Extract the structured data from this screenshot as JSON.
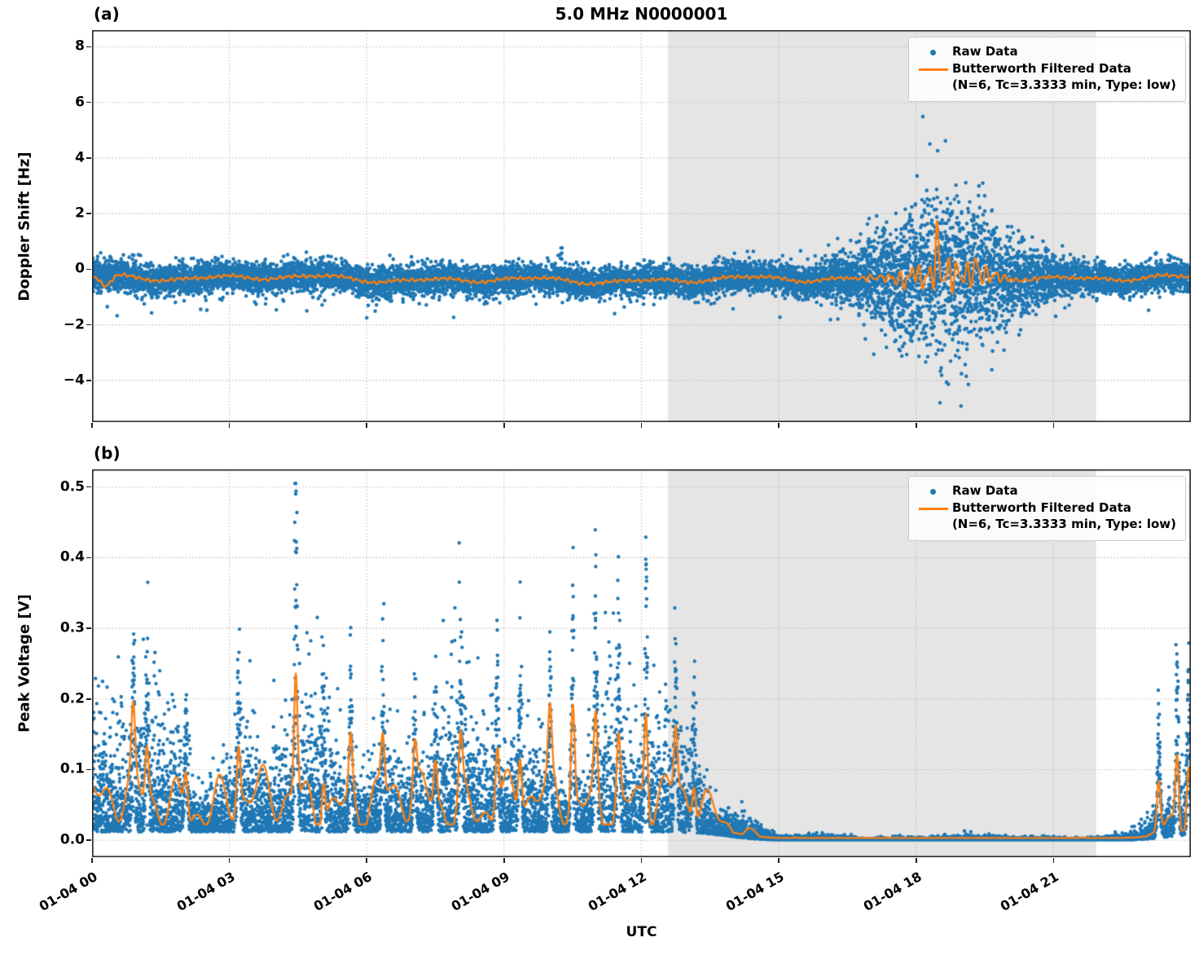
{
  "title": "5.0 MHz N0000001",
  "xlabel": "UTC",
  "colors": {
    "raw": "#1f77b4",
    "filtered": "#ff7f0e",
    "shade": "#e5e5e5",
    "grid": "#b9b9b9",
    "spine": "#1a1a1a",
    "text": "#000000",
    "legend_border": "#cccccc"
  },
  "legend": {
    "raw_label": "Raw Data",
    "filtered_label": "Butterworth Filtered Data",
    "filtered_sublabel": "(N=6, Tc=3.3333 min, Type: low)"
  },
  "x_axis": {
    "range_hours": [
      0,
      24
    ],
    "ticks": [
      [
        0,
        "01-04 00"
      ],
      [
        3,
        "01-04 03"
      ],
      [
        6,
        "01-04 06"
      ],
      [
        9,
        "01-04 09"
      ],
      [
        12,
        "01-04 12"
      ],
      [
        15,
        "01-04 15"
      ],
      [
        18,
        "01-04 18"
      ],
      [
        21,
        "01-04 21"
      ]
    ]
  },
  "shaded_region_hours": [
    12.58,
    21.93
  ],
  "seed": 7,
  "chart_data": [
    {
      "id": "doppler",
      "type": "scatter",
      "panel_label": "(a)",
      "ylabel": "Doppler Shift [Hz]",
      "ylim": [
        -5.5,
        8.6
      ],
      "yticks": [
        [
          8,
          "8"
        ],
        [
          6,
          "6"
        ],
        [
          4,
          "4"
        ],
        [
          2,
          "2"
        ],
        [
          0,
          "0"
        ],
        [
          -2,
          "−2"
        ],
        [
          -4,
          "−4"
        ]
      ],
      "series_names": [
        "Raw Data",
        "Butterworth Filtered Data (N=6, Tc=3.3333 min, Type: low)"
      ],
      "raw": {
        "n": 12000,
        "center": -0.35,
        "std": 0.27,
        "center_waves": [
          [
            0.07,
            2.7,
            0.5
          ],
          [
            0.05,
            1.3,
            2.1
          ],
          [
            0.035,
            5.3,
            4.0
          ],
          [
            0.06,
            0.35,
            1.0
          ]
        ],
        "burst": {
          "center": 18.6,
          "sigma": 1.55,
          "extra_std": 1.2,
          "tail_prob": 0.02,
          "tail_mult": 2.4
        },
        "outlier_prob": 0.0015,
        "clip": [
          -4.92,
          6.1
        ],
        "spike_clusters": [
          [
            10.25,
            1.05
          ]
        ]
      },
      "filtered": {
        "n": 2600,
        "fast_waves": [
          [
            0.035,
            37,
            0.7
          ],
          [
            0.028,
            61,
            2.3
          ]
        ],
        "burst_osc": {
          "center": 18.6,
          "sigma": 1.1,
          "amp": 0.42,
          "waves": [
            [
              1.0,
              30,
              0.0
            ],
            [
              0.6,
              47,
              1.2
            ]
          ]
        },
        "spikes": [
          [
            18.45,
            1.5,
            0.045
          ],
          [
            17.95,
            0.55,
            0.05
          ],
          [
            19.3,
            0.5,
            0.045
          ]
        ],
        "start_dip": [
          0.3,
          -0.38,
          0.16
        ]
      }
    },
    {
      "id": "voltage",
      "type": "scatter",
      "panel_label": "(b)",
      "ylabel": "Peak Voltage [V]",
      "ylim": [
        -0.024,
        0.525
      ],
      "yticks": [
        [
          0.5,
          "0.5"
        ],
        [
          0.4,
          "0.4"
        ],
        [
          0.3,
          "0.3"
        ],
        [
          0.2,
          "0.2"
        ],
        [
          0.1,
          "0.1"
        ],
        [
          0,
          "0.0"
        ]
      ],
      "series_names": [
        "Raw Data",
        "Butterworth Filtered Data (N=6, Tc=3.3333 min, Type: low)"
      ],
      "raw": {
        "n": 12000,
        "envelope": {
          "decay_mid": 13.9,
          "decay_width": 0.35,
          "rise_mid": 23.45,
          "rise_width": 0.3,
          "rise_scale": 0.75,
          "floor": 0.035
        },
        "base_offset": 0.012,
        "noise_scale": 0.048,
        "noise_pow": 1.3,
        "mod_waves": [
          [
            0.35,
            1.7,
            0.3
          ],
          [
            0.25,
            3.9,
            1.7
          ]
        ],
        "spike_width": 0.04,
        "spikes": [
          [
            0.9,
            0.26
          ],
          [
            1.2,
            0.21
          ],
          [
            2.05,
            0.17
          ],
          [
            3.2,
            0.24
          ],
          [
            4.45,
            0.5
          ],
          [
            5.05,
            0.19
          ],
          [
            5.65,
            0.23
          ],
          [
            6.35,
            0.21
          ],
          [
            7.05,
            0.19
          ],
          [
            7.5,
            0.17
          ],
          [
            8.05,
            0.22
          ],
          [
            8.85,
            0.26
          ],
          [
            9.35,
            0.22
          ],
          [
            10.0,
            0.25
          ],
          [
            10.5,
            0.39
          ],
          [
            11.0,
            0.3
          ],
          [
            11.5,
            0.26
          ],
          [
            12.1,
            0.39
          ],
          [
            12.75,
            0.26
          ],
          [
            13.15,
            0.15
          ],
          [
            23.3,
            0.2
          ],
          [
            23.7,
            0.28
          ],
          [
            23.95,
            0.22
          ]
        ],
        "clip": [
          0.0008,
          0.505
        ]
      },
      "filtered": {
        "n": 2600,
        "mean": 0.055,
        "waves": [
          [
            0.025,
            7,
            1.0
          ],
          [
            0.018,
            13,
            3.0
          ],
          [
            0.012,
            2.1,
            0.0
          ]
        ],
        "spike_frac": 0.36,
        "spike_width": 0.055,
        "floor_frac": 0.02,
        "floor_abs": 0.0025
      }
    }
  ]
}
